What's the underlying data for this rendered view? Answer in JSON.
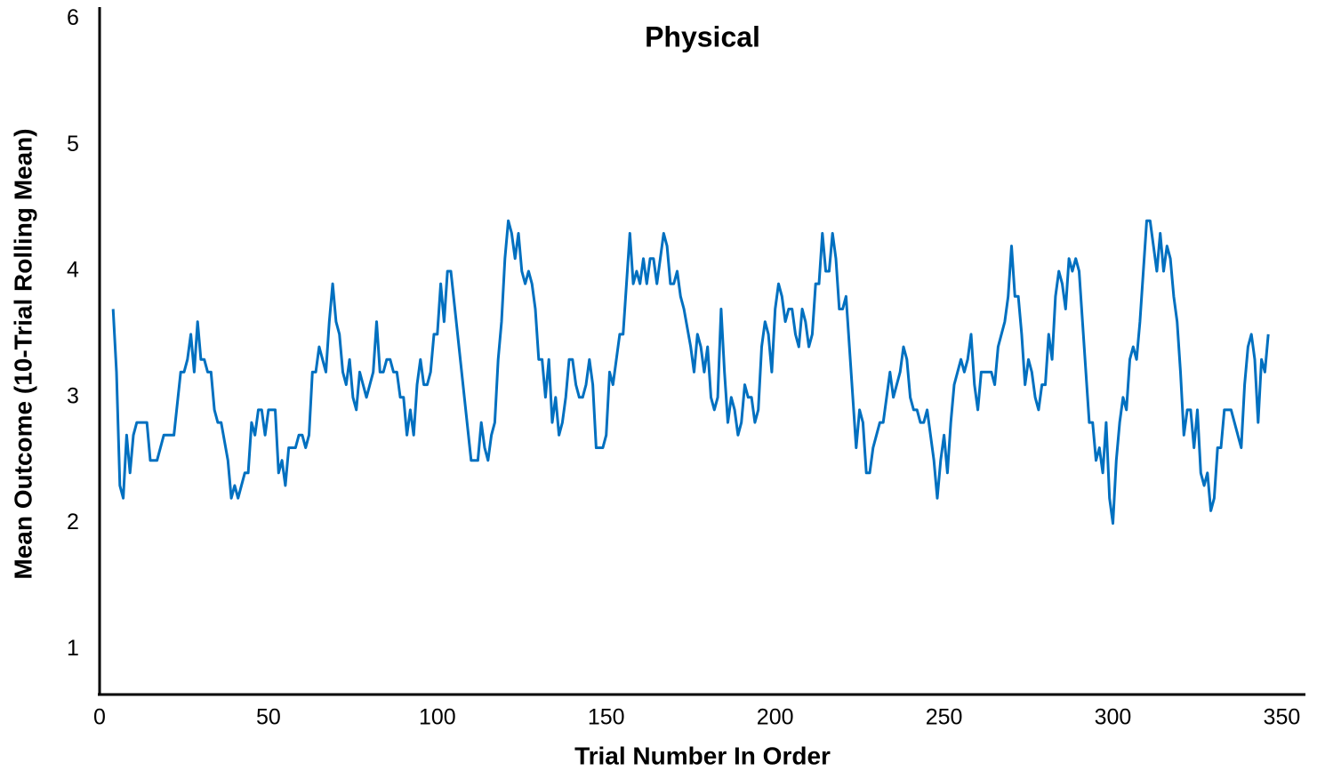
{
  "chart_data": {
    "type": "line",
    "title": "Physical",
    "x_label": "Trial Number In Order",
    "y_label": "Mean Outcome (10-Trial Rolling Mean)",
    "xlim": [
      0,
      357
    ],
    "xticks": [
      0,
      50,
      100,
      150,
      200,
      250,
      300,
      350
    ],
    "ylim": [
      0.65,
      6.08
    ],
    "yticks": [
      1,
      2,
      3,
      4,
      5,
      6
    ],
    "color": "#0070c0",
    "x": [
      4,
      5,
      6,
      7,
      8,
      9,
      10,
      11,
      12,
      14,
      15,
      17,
      19,
      21,
      22,
      24,
      25,
      26,
      27,
      28,
      29,
      30,
      31,
      32,
      33,
      34,
      35,
      36,
      38,
      39,
      40,
      41,
      43,
      44,
      45,
      46,
      47,
      48,
      49,
      50,
      52,
      53,
      54,
      55,
      56,
      58,
      59,
      60,
      61,
      62,
      63,
      64,
      65,
      66,
      67,
      68,
      69,
      70,
      71,
      72,
      73,
      74,
      75,
      76,
      77,
      78,
      79,
      80,
      81,
      82,
      83,
      84,
      85,
      86,
      87,
      88,
      89,
      90,
      91,
      92,
      93,
      94,
      95,
      96,
      97,
      98,
      99,
      100,
      101,
      102,
      103,
      104,
      106,
      108,
      110,
      112,
      113,
      114,
      115,
      116,
      117,
      118,
      119,
      120,
      121,
      122,
      123,
      124,
      125,
      126,
      127,
      128,
      129,
      130,
      131,
      132,
      133,
      134,
      135,
      136,
      137,
      138,
      139,
      140,
      141,
      142,
      143,
      144,
      145,
      146,
      147,
      148,
      149,
      150,
      151,
      152,
      153,
      154,
      155,
      156,
      157,
      158,
      159,
      160,
      161,
      162,
      163,
      164,
      165,
      166,
      167,
      168,
      169,
      170,
      171,
      172,
      173,
      175,
      176,
      177,
      178,
      179,
      180,
      181,
      182,
      183,
      184,
      185,
      186,
      187,
      188,
      189,
      190,
      191,
      192,
      193,
      194,
      195,
      196,
      197,
      198,
      199,
      200,
      201,
      202,
      203,
      204,
      205,
      206,
      207,
      208,
      209,
      210,
      211,
      212,
      213,
      214,
      215,
      216,
      217,
      218,
      219,
      220,
      221,
      222,
      223,
      224,
      225,
      226,
      227,
      228,
      229,
      230,
      231,
      232,
      233,
      234,
      235,
      236,
      237,
      238,
      239,
      240,
      241,
      242,
      243,
      244,
      245,
      246,
      247,
      248,
      249,
      250,
      251,
      252,
      253,
      254,
      255,
      256,
      257,
      258,
      259,
      260,
      261,
      262,
      264,
      265,
      266,
      268,
      269,
      270,
      271,
      272,
      273,
      274,
      275,
      276,
      277,
      278,
      279,
      280,
      281,
      282,
      283,
      284,
      285,
      286,
      287,
      288,
      289,
      290,
      291,
      292,
      293,
      294,
      295,
      296,
      297,
      298,
      299,
      300,
      301,
      302,
      303,
      304,
      305,
      306,
      307,
      308,
      309,
      310,
      311,
      312,
      313,
      314,
      315,
      316,
      317,
      318,
      319,
      320,
      321,
      322,
      323,
      324,
      325,
      326,
      327,
      328,
      329,
      330,
      331,
      332,
      333,
      335,
      336,
      338,
      339,
      340,
      341,
      342,
      343,
      344,
      345,
      346
    ],
    "values": [
      3.7,
      3.2,
      2.3,
      2.2,
      2.7,
      2.4,
      2.7,
      2.8,
      2.8,
      2.8,
      2.5,
      2.5,
      2.7,
      2.7,
      2.7,
      3.2,
      3.2,
      3.3,
      3.5,
      3.2,
      3.6,
      3.3,
      3.3,
      3.2,
      3.2,
      2.9,
      2.8,
      2.8,
      2.5,
      2.2,
      2.3,
      2.2,
      2.4,
      2.4,
      2.8,
      2.7,
      2.9,
      2.9,
      2.7,
      2.9,
      2.9,
      2.4,
      2.5,
      2.3,
      2.6,
      2.6,
      2.7,
      2.7,
      2.6,
      2.7,
      3.2,
      3.2,
      3.4,
      3.3,
      3.2,
      3.6,
      3.9,
      3.6,
      3.5,
      3.2,
      3.1,
      3.3,
      3.0,
      2.9,
      3.2,
      3.1,
      3.0,
      3.1,
      3.2,
      3.6,
      3.2,
      3.2,
      3.3,
      3.3,
      3.2,
      3.2,
      3.0,
      3.0,
      2.7,
      2.9,
      2.7,
      3.1,
      3.3,
      3.1,
      3.1,
      3.2,
      3.5,
      3.5,
      3.9,
      3.6,
      4.0,
      4.0,
      3.5,
      3.0,
      2.5,
      2.5,
      2.8,
      2.6,
      2.5,
      2.7,
      2.8,
      3.3,
      3.6,
      4.1,
      4.4,
      4.3,
      4.1,
      4.3,
      4.0,
      3.9,
      4.0,
      3.9,
      3.7,
      3.3,
      3.3,
      3.0,
      3.3,
      2.8,
      3.0,
      2.7,
      2.8,
      3.0,
      3.3,
      3.3,
      3.1,
      3.0,
      3.0,
      3.1,
      3.3,
      3.1,
      2.6,
      2.6,
      2.6,
      2.7,
      3.2,
      3.1,
      3.3,
      3.5,
      3.5,
      3.9,
      4.3,
      3.9,
      4.0,
      3.9,
      4.1,
      3.9,
      4.1,
      4.1,
      3.9,
      4.1,
      4.3,
      4.2,
      3.9,
      3.9,
      4.0,
      3.8,
      3.7,
      3.4,
      3.2,
      3.5,
      3.4,
      3.2,
      3.4,
      3.0,
      2.9,
      3.0,
      3.7,
      3.2,
      2.8,
      3.0,
      2.9,
      2.7,
      2.8,
      3.1,
      3.0,
      3.0,
      2.8,
      2.9,
      3.4,
      3.6,
      3.5,
      3.2,
      3.7,
      3.9,
      3.8,
      3.6,
      3.7,
      3.7,
      3.5,
      3.4,
      3.7,
      3.6,
      3.4,
      3.5,
      3.9,
      3.9,
      4.3,
      4.0,
      4.0,
      4.3,
      4.1,
      3.7,
      3.7,
      3.8,
      3.4,
      3.0,
      2.6,
      2.9,
      2.8,
      2.4,
      2.4,
      2.6,
      2.7,
      2.8,
      2.8,
      3.0,
      3.2,
      3.0,
      3.1,
      3.2,
      3.4,
      3.3,
      3.0,
      2.9,
      2.9,
      2.8,
      2.8,
      2.9,
      2.7,
      2.5,
      2.2,
      2.5,
      2.7,
      2.4,
      2.8,
      3.1,
      3.2,
      3.3,
      3.2,
      3.3,
      3.5,
      3.1,
      2.9,
      3.2,
      3.2,
      3.2,
      3.1,
      3.4,
      3.6,
      3.8,
      4.2,
      3.8,
      3.8,
      3.5,
      3.1,
      3.3,
      3.2,
      3.0,
      2.9,
      3.1,
      3.1,
      3.5,
      3.3,
      3.8,
      4.0,
      3.9,
      3.7,
      4.1,
      4.0,
      4.1,
      4.0,
      3.6,
      3.2,
      2.8,
      2.8,
      2.5,
      2.6,
      2.4,
      2.8,
      2.2,
      2.0,
      2.5,
      2.8,
      3.0,
      2.9,
      3.3,
      3.4,
      3.3,
      3.6,
      4.0,
      4.4,
      4.4,
      4.2,
      4.0,
      4.3,
      4.0,
      4.2,
      4.1,
      3.8,
      3.6,
      3.2,
      2.7,
      2.9,
      2.9,
      2.6,
      2.9,
      2.4,
      2.3,
      2.4,
      2.1,
      2.2,
      2.6,
      2.6,
      2.9,
      2.9,
      2.8,
      2.6,
      3.1,
      3.4,
      3.5,
      3.3,
      2.8,
      3.3,
      3.2,
      3.5
    ]
  }
}
